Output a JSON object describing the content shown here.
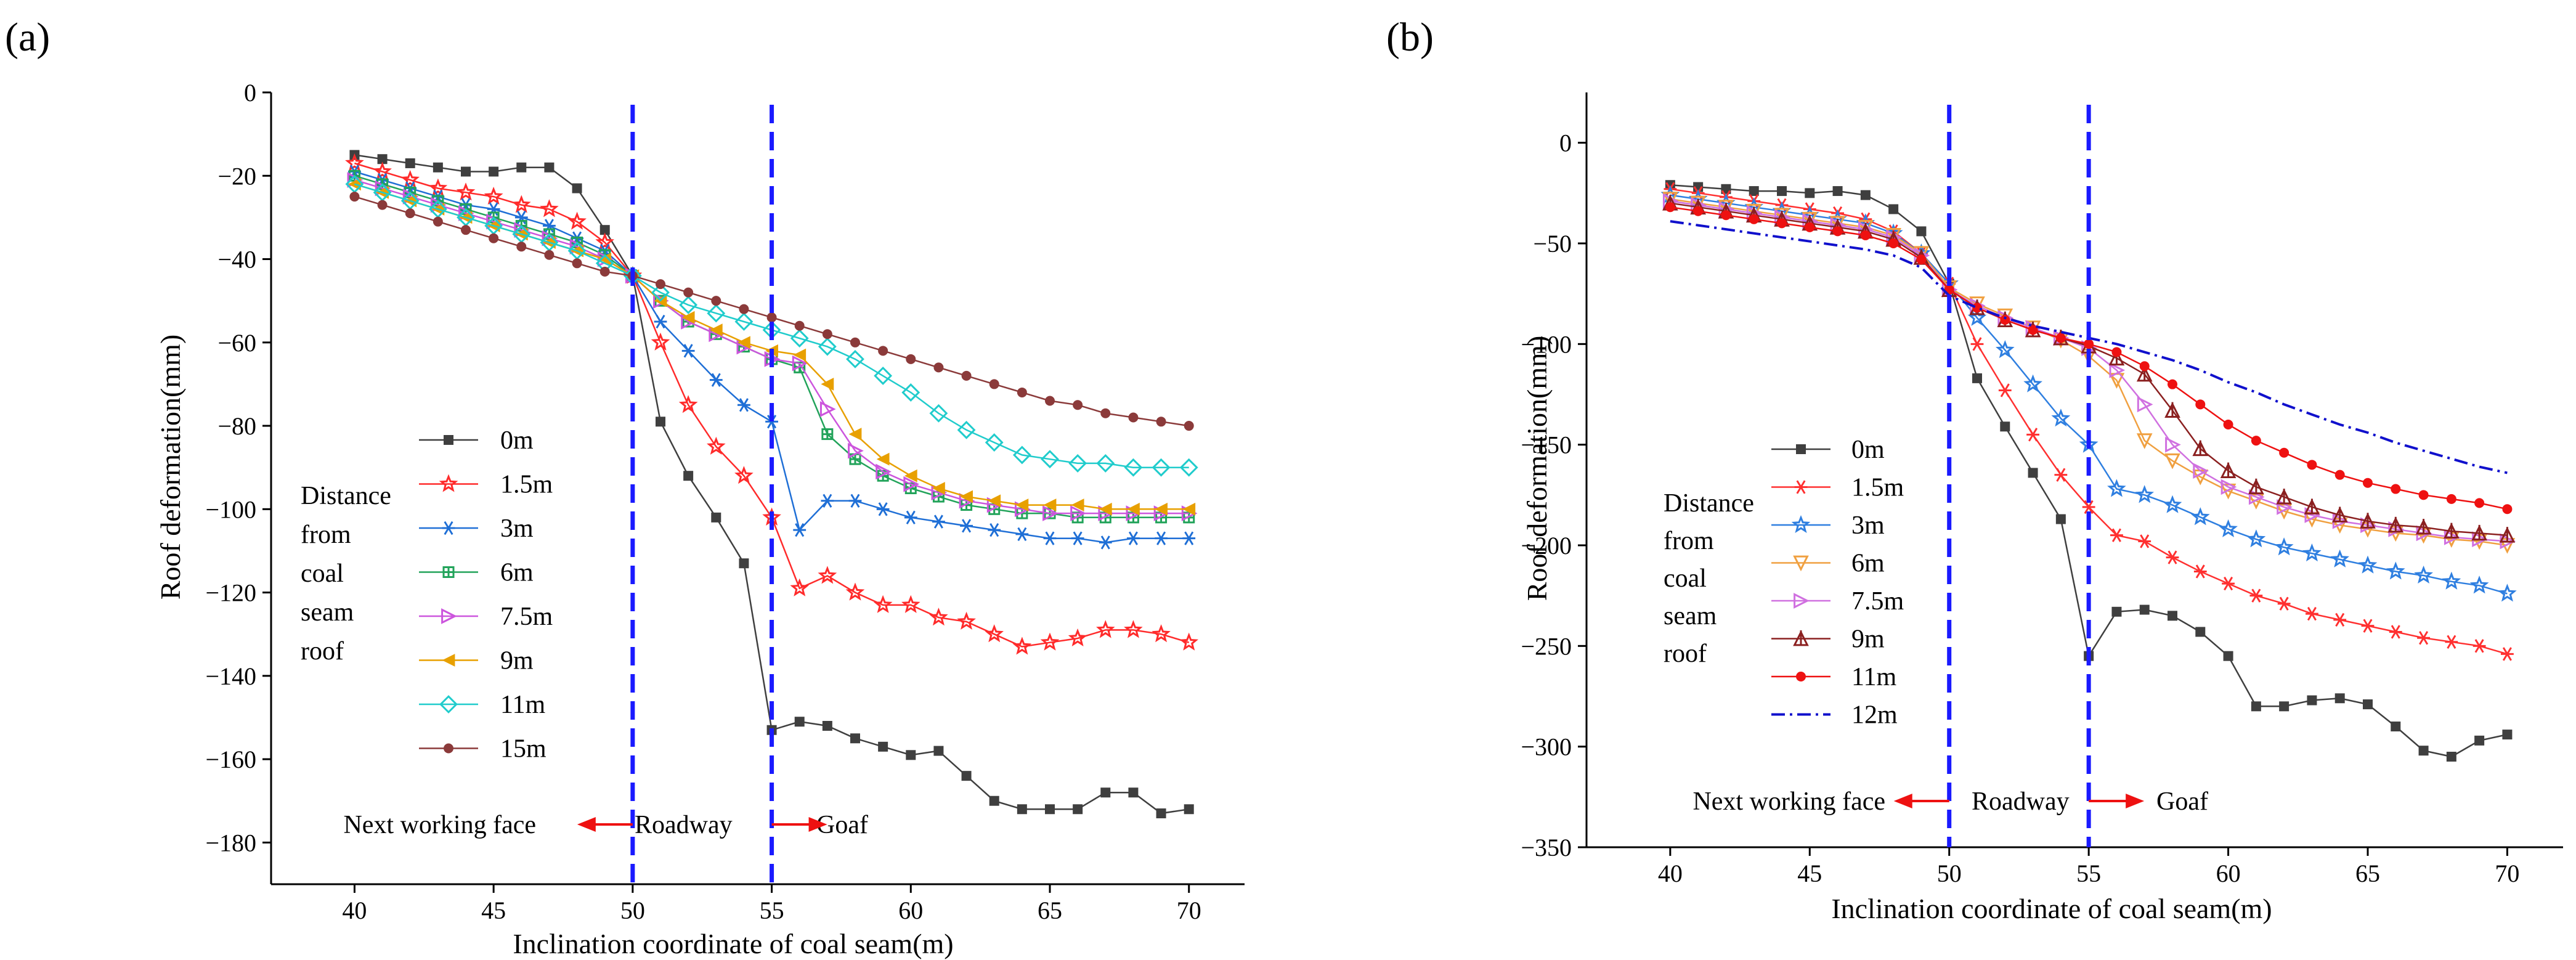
{
  "chart_data": [
    {
      "panel": "(a)",
      "type": "line",
      "xlabel": "Inclination coordinate of coal seam(m)",
      "ylabel": "Roof deformation(mm)",
      "xlim": [
        37,
        72
      ],
      "ylim": [
        -190,
        0
      ],
      "xticks": [
        40,
        45,
        50,
        55,
        60,
        65,
        70
      ],
      "yticks": [
        0,
        -20,
        -40,
        -60,
        -80,
        -100,
        -120,
        -140,
        -160,
        -180
      ],
      "vlines": [
        50,
        55
      ],
      "legend_title": [
        "Distance",
        "from",
        "coal",
        "seam",
        "roof"
      ],
      "annotations": {
        "left": "Next working face",
        "middle": "Roadway",
        "right": "Goaf"
      },
      "x": [
        40,
        41,
        42,
        43,
        44,
        45,
        46,
        47,
        48,
        49,
        50,
        51,
        52,
        53,
        54,
        55,
        56,
        57,
        58,
        59,
        60,
        61,
        62,
        63,
        64,
        65,
        66,
        67,
        68,
        69,
        70
      ],
      "series": [
        {
          "name": "0m",
          "color": "#3f3f3f",
          "marker": "square",
          "values": [
            -15,
            -16,
            -17,
            -18,
            -19,
            -19,
            -18,
            -18,
            -23,
            -33,
            -44,
            -79,
            -92,
            -102,
            -113,
            -153,
            -151,
            -152,
            -155,
            -157,
            -159,
            -158,
            -164,
            -170,
            -172,
            -172,
            -172,
            -168,
            -168,
            -173,
            -172
          ]
        },
        {
          "name": "1.5m",
          "color": "#ff2b2b",
          "marker": "star",
          "values": [
            -17,
            -19,
            -21,
            -23,
            -24,
            -25,
            -27,
            -28,
            -31,
            -36,
            -44,
            -60,
            -75,
            -85,
            -92,
            -102,
            -119,
            -116,
            -120,
            -123,
            -123,
            -126,
            -127,
            -130,
            -133,
            -132,
            -131,
            -129,
            -129,
            -130,
            -132
          ]
        },
        {
          "name": "3m",
          "color": "#1f6fd6",
          "marker": "asterisk",
          "values": [
            -19,
            -21,
            -23,
            -25,
            -27,
            -28,
            -30,
            -32,
            -35,
            -38,
            -44,
            -55,
            -62,
            -69,
            -75,
            -79,
            -105,
            -98,
            -98,
            -100,
            -102,
            -103,
            -104,
            -105,
            -106,
            -107,
            -107,
            -108,
            -107,
            -107,
            -107
          ]
        },
        {
          "name": "6m",
          "color": "#22a35a",
          "marker": "square-plus",
          "values": [
            -20,
            -22,
            -24,
            -26,
            -28,
            -30,
            -32,
            -34,
            -36,
            -39,
            -44,
            -50,
            -55,
            -58,
            -61,
            -64,
            -66,
            -82,
            -88,
            -92,
            -95,
            -97,
            -99,
            -100,
            -101,
            -101,
            -102,
            -102,
            -102,
            -102,
            -102
          ]
        },
        {
          "name": "7.5m",
          "color": "#cc55dd",
          "marker": "triangle-right",
          "values": [
            -21,
            -23,
            -25,
            -27,
            -29,
            -31,
            -33,
            -35,
            -37,
            -40,
            -44,
            -50,
            -55,
            -58,
            -61,
            -64,
            -65,
            -76,
            -86,
            -91,
            -94,
            -96,
            -98,
            -99,
            -100,
            -101,
            -101,
            -101,
            -101,
            -101,
            -101
          ]
        },
        {
          "name": "9m",
          "color": "#e8a000",
          "marker": "triangle-left",
          "values": [
            -22,
            -24,
            -26,
            -28,
            -30,
            -32,
            -34,
            -36,
            -38,
            -40,
            -44,
            -50,
            -54,
            -57,
            -60,
            -62,
            -63,
            -70,
            -82,
            -88,
            -92,
            -95,
            -97,
            -98,
            -99,
            -99,
            -99,
            -100,
            -100,
            -100,
            -100
          ]
        },
        {
          "name": "11m",
          "color": "#20cccc",
          "marker": "diamond",
          "values": [
            -22,
            -24,
            -26,
            -28,
            -30,
            -32,
            -34,
            -36,
            -38,
            -41,
            -44,
            -48,
            -51,
            -53,
            -55,
            -57,
            -59,
            -61,
            -64,
            -68,
            -72,
            -77,
            -81,
            -84,
            -87,
            -88,
            -89,
            -89,
            -90,
            -90,
            -90
          ]
        },
        {
          "name": "15m",
          "color": "#8b3a3a",
          "marker": "circle",
          "values": [
            -25,
            -27,
            -29,
            -31,
            -33,
            -35,
            -37,
            -39,
            -41,
            -43,
            -44,
            -46,
            -48,
            -50,
            -52,
            -54,
            -56,
            -58,
            -60,
            -62,
            -64,
            -66,
            -68,
            -70,
            -72,
            -74,
            -75,
            -77,
            -78,
            -79,
            -80
          ]
        }
      ]
    },
    {
      "panel": "(b)",
      "type": "line",
      "xlabel": "Inclination coordinate of coal seam(m)",
      "ylabel": "Roof deformation(mm)",
      "xlim": [
        37,
        72
      ],
      "ylim": [
        -350,
        25
      ],
      "xticks": [
        40,
        45,
        50,
        55,
        60,
        65,
        70
      ],
      "yticks": [
        0,
        -50,
        -100,
        -150,
        -200,
        -250,
        -300,
        -350
      ],
      "vlines": [
        50,
        55
      ],
      "legend_title": [
        "Distance",
        "from",
        "coal",
        "seam",
        "roof"
      ],
      "annotations": {
        "left": "Next working face",
        "middle": "Roadway",
        "right": "Goaf"
      },
      "x": [
        40,
        41,
        42,
        43,
        44,
        45,
        46,
        47,
        48,
        49,
        50,
        51,
        52,
        53,
        54,
        55,
        56,
        57,
        58,
        59,
        60,
        61,
        62,
        63,
        64,
        65,
        66,
        67,
        68,
        69,
        70
      ],
      "series": [
        {
          "name": "0m",
          "color": "#3f3f3f",
          "marker": "square",
          "values": [
            -21,
            -22,
            -23,
            -24,
            -24,
            -25,
            -24,
            -26,
            -33,
            -44,
            -70,
            -117,
            -141,
            -164,
            -187,
            -255,
            -233,
            -232,
            -235,
            -243,
            -255,
            -280,
            -280,
            -277,
            -276,
            -279,
            -290,
            -302,
            -305,
            -297,
            -294
          ]
        },
        {
          "name": "1.5m",
          "color": "#ff3030",
          "marker": "asterisk",
          "values": [
            -23,
            -25,
            -27,
            -29,
            -31,
            -33,
            -35,
            -38,
            -44,
            -55,
            -70,
            -100,
            -123,
            -145,
            -165,
            -181,
            -195,
            -198,
            -206,
            -213,
            -219,
            -225,
            -229,
            -234,
            -237,
            -240,
            -243,
            -246,
            -248,
            -250,
            -254
          ]
        },
        {
          "name": "3m",
          "color": "#2f7fe0",
          "marker": "star",
          "values": [
            -26,
            -28,
            -30,
            -32,
            -34,
            -36,
            -38,
            -40,
            -45,
            -55,
            -70,
            -87,
            -103,
            -120,
            -137,
            -150,
            -172,
            -175,
            -180,
            -186,
            -192,
            -197,
            -201,
            -204,
            -207,
            -210,
            -213,
            -215,
            -218,
            -220,
            -224
          ]
        },
        {
          "name": "6m",
          "color": "#f0a040",
          "marker": "triangle-down",
          "values": [
            -28,
            -30,
            -32,
            -34,
            -36,
            -38,
            -40,
            -42,
            -46,
            -55,
            -72,
            -80,
            -86,
            -92,
            -98,
            -106,
            -118,
            -148,
            -158,
            -166,
            -173,
            -178,
            -183,
            -187,
            -190,
            -192,
            -194,
            -195,
            -197,
            -198,
            -200
          ]
        },
        {
          "name": "7.5m",
          "color": "#d070e0",
          "marker": "triangle-right",
          "values": [
            -29,
            -31,
            -33,
            -35,
            -37,
            -39,
            -41,
            -43,
            -47,
            -56,
            -73,
            -81,
            -87,
            -92,
            -97,
            -102,
            -113,
            -130,
            -150,
            -163,
            -171,
            -176,
            -181,
            -185,
            -188,
            -190,
            -192,
            -194,
            -196,
            -197,
            -198
          ]
        },
        {
          "name": "9m",
          "color": "#8b2020",
          "marker": "plus-triangle",
          "values": [
            -30,
            -32,
            -34,
            -36,
            -38,
            -40,
            -42,
            -44,
            -48,
            -57,
            -73,
            -82,
            -88,
            -93,
            -97,
            -101,
            -107,
            -115,
            -133,
            -152,
            -163,
            -171,
            -176,
            -181,
            -185,
            -188,
            -190,
            -191,
            -193,
            -194,
            -195
          ]
        },
        {
          "name": "11m",
          "color": "#ee1111",
          "marker": "circle",
          "values": [
            -32,
            -34,
            -36,
            -38,
            -40,
            -42,
            -44,
            -46,
            -50,
            -58,
            -73,
            -82,
            -88,
            -93,
            -97,
            -100,
            -104,
            -111,
            -120,
            -130,
            -140,
            -148,
            -154,
            -160,
            -165,
            -169,
            -172,
            -175,
            -177,
            -179,
            -182
          ]
        },
        {
          "name": "12m",
          "color": "#1010cc",
          "marker": "none",
          "values": [
            -39,
            -41,
            -43,
            -45,
            -47,
            -49,
            -51,
            -53,
            -56,
            -62,
            -76,
            -82,
            -87,
            -91,
            -94,
            -97,
            -100,
            -104,
            -108,
            -113,
            -119,
            -124,
            -130,
            -135,
            -140,
            -144,
            -149,
            -153,
            -157,
            -161,
            -164
          ]
        }
      ]
    }
  ]
}
